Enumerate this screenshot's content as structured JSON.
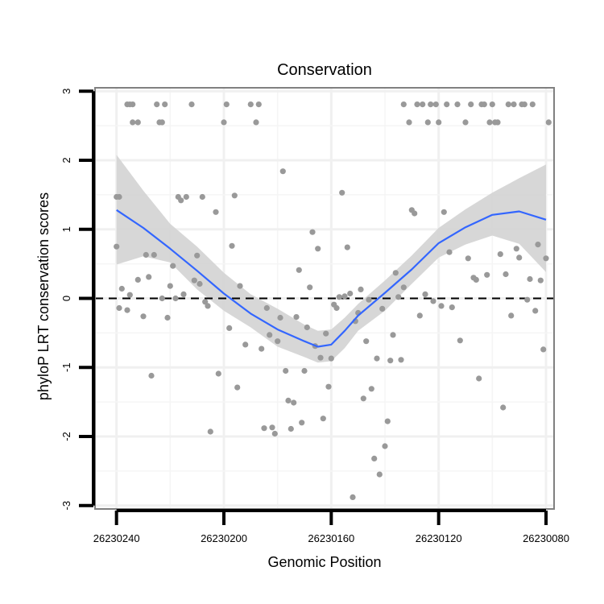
{
  "chart_data": {
    "type": "scatter",
    "title": "Conservation",
    "xlabel": "Genomic Position",
    "ylabel": "phyloP LRT conservation scores",
    "x_reversed": true,
    "xlim": [
      26230248,
      26230077
    ],
    "ylim": [
      -3.05,
      3.05
    ],
    "x_ticks": [
      26230240,
      26230200,
      26230160,
      26230120,
      26230080
    ],
    "x_tick_labels": [
      "26230240",
      "26230200",
      "26230160",
      "26230120",
      "26230080"
    ],
    "y_ticks": [
      -3,
      -2,
      -1,
      0,
      1,
      2,
      3
    ],
    "y_tick_labels": [
      "-3",
      "-2",
      "-1",
      "0",
      "1",
      "2",
      "3"
    ],
    "reference_line": {
      "y": 0,
      "style": "dashed"
    },
    "points_color": "#999999",
    "smooth_color": "#3366FF",
    "band_color": "#D3D3D3",
    "points": [
      [
        26230240,
        1.47
      ],
      [
        26230239,
        1.47
      ],
      [
        26230240,
        0.75
      ],
      [
        26230238,
        0.14
      ],
      [
        26230239,
        -0.14
      ],
      [
        26230236,
        -0.17
      ],
      [
        26230235,
        0.05
      ],
      [
        26230236,
        2.81
      ],
      [
        26230235,
        2.81
      ],
      [
        26230234,
        2.55
      ],
      [
        26230234,
        2.81
      ],
      [
        26230232,
        2.55
      ],
      [
        26230232,
        0.27
      ],
      [
        26230230,
        -0.26
      ],
      [
        26230228,
        0.31
      ],
      [
        26230229,
        0.63
      ],
      [
        26230227,
        -1.12
      ],
      [
        26230226,
        0.63
      ],
      [
        26230225,
        2.81
      ],
      [
        26230224,
        2.55
      ],
      [
        26230223,
        2.55
      ],
      [
        26230223,
        0.0
      ],
      [
        26230222,
        2.81
      ],
      [
        26230221,
        -0.28
      ],
      [
        26230220,
        0.18
      ],
      [
        26230219,
        0.47
      ],
      [
        26230218,
        0.0
      ],
      [
        26230217,
        1.47
      ],
      [
        26230216,
        1.42
      ],
      [
        26230215,
        0.06
      ],
      [
        26230214,
        1.47
      ],
      [
        26230212,
        2.81
      ],
      [
        26230211,
        0.26
      ],
      [
        26230210,
        0.62
      ],
      [
        26230209,
        0.21
      ],
      [
        26230208,
        1.47
      ],
      [
        26230206,
        -0.11
      ],
      [
        26230207,
        -0.05
      ],
      [
        26230205,
        -1.93
      ],
      [
        26230203,
        1.25
      ],
      [
        26230202,
        -1.09
      ],
      [
        26230200,
        2.55
      ],
      [
        26230199,
        2.81
      ],
      [
        26230198,
        -0.43
      ],
      [
        26230197,
        0.76
      ],
      [
        26230196,
        1.49
      ],
      [
        26230195,
        -1.29
      ],
      [
        26230194,
        0.18
      ],
      [
        26230192,
        -0.67
      ],
      [
        26230190,
        2.81
      ],
      [
        26230188,
        2.55
      ],
      [
        26230187,
        2.81
      ],
      [
        26230186,
        -0.73
      ],
      [
        26230185,
        -1.88
      ],
      [
        26230184,
        -0.14
      ],
      [
        26230183,
        -0.53
      ],
      [
        26230182,
        -1.87
      ],
      [
        26230181,
        -1.96
      ],
      [
        26230180,
        -0.62
      ],
      [
        26230179,
        -0.28
      ],
      [
        26230178,
        1.84
      ],
      [
        26230177,
        -1.05
      ],
      [
        26230176,
        -1.48
      ],
      [
        26230175,
        -1.89
      ],
      [
        26230174,
        -1.51
      ],
      [
        26230173,
        -0.27
      ],
      [
        26230172,
        0.41
      ],
      [
        26230171,
        -1.8
      ],
      [
        26230170,
        -1.05
      ],
      [
        26230169,
        -0.42
      ],
      [
        26230168,
        0.16
      ],
      [
        26230167,
        0.96
      ],
      [
        26230166,
        -0.69
      ],
      [
        26230165,
        0.72
      ],
      [
        26230164,
        -0.86
      ],
      [
        26230163,
        -1.74
      ],
      [
        26230162,
        -0.51
      ],
      [
        26230161,
        -1.28
      ],
      [
        26230160,
        -0.87
      ],
      [
        26230159,
        -0.09
      ],
      [
        26230158,
        -0.14
      ],
      [
        26230157,
        0.02
      ],
      [
        26230156,
        1.53
      ],
      [
        26230155,
        0.03
      ],
      [
        26230154,
        0.74
      ],
      [
        26230153,
        0.07
      ],
      [
        26230152,
        -2.88
      ],
      [
        26230151,
        -0.33
      ],
      [
        26230150,
        -0.21
      ],
      [
        26230149,
        0.13
      ],
      [
        26230148,
        -1.45
      ],
      [
        26230147,
        -0.62
      ],
      [
        26230146,
        -0.02
      ],
      [
        26230145,
        -1.31
      ],
      [
        26230144,
        -2.32
      ],
      [
        26230143,
        -0.87
      ],
      [
        26230142,
        -2.55
      ],
      [
        26230141,
        -0.15
      ],
      [
        26230140,
        -2.14
      ],
      [
        26230139,
        -1.78
      ],
      [
        26230138,
        -0.9
      ],
      [
        26230137,
        -0.53
      ],
      [
        26230136,
        0.37
      ],
      [
        26230135,
        0.02
      ],
      [
        26230134,
        -0.89
      ],
      [
        26230133,
        0.16
      ],
      [
        26230133,
        2.81
      ],
      [
        26230131,
        2.55
      ],
      [
        26230130,
        1.28
      ],
      [
        26230129,
        1.23
      ],
      [
        26230128,
        2.81
      ],
      [
        26230127,
        -0.25
      ],
      [
        26230126,
        2.81
      ],
      [
        26230125,
        0.06
      ],
      [
        26230124,
        2.55
      ],
      [
        26230123,
        2.81
      ],
      [
        26230122,
        -0.04
      ],
      [
        26230121,
        2.81
      ],
      [
        26230120,
        2.55
      ],
      [
        26230119,
        -0.11
      ],
      [
        26230118,
        1.25
      ],
      [
        26230117,
        2.81
      ],
      [
        26230116,
        0.67
      ],
      [
        26230115,
        -0.13
      ],
      [
        26230113,
        2.81
      ],
      [
        26230112,
        -0.61
      ],
      [
        26230110,
        2.55
      ],
      [
        26230109,
        0.58
      ],
      [
        26230108,
        2.81
      ],
      [
        26230107,
        0.3
      ],
      [
        26230106,
        0.27
      ],
      [
        26230105,
        -1.16
      ],
      [
        26230104,
        2.81
      ],
      [
        26230103,
        2.81
      ],
      [
        26230102,
        0.34
      ],
      [
        26230101,
        2.55
      ],
      [
        26230100,
        2.81
      ],
      [
        26230099,
        2.55
      ],
      [
        26230098,
        2.55
      ],
      [
        26230097,
        0.64
      ],
      [
        26230096,
        -1.58
      ],
      [
        26230095,
        0.35
      ],
      [
        26230094,
        2.81
      ],
      [
        26230093,
        -0.25
      ],
      [
        26230092,
        2.81
      ],
      [
        26230091,
        0.72
      ],
      [
        26230090,
        0.59
      ],
      [
        26230089,
        2.81
      ],
      [
        26230088,
        2.81
      ],
      [
        26230087,
        -0.02
      ],
      [
        26230086,
        0.28
      ],
      [
        26230085,
        2.81
      ],
      [
        26230084,
        -0.18
      ],
      [
        26230083,
        0.78
      ],
      [
        26230082,
        0.26
      ],
      [
        26230081,
        -0.74
      ],
      [
        26230080,
        0.58
      ],
      [
        26230079,
        2.55
      ]
    ],
    "smooth_fit": [
      [
        26230240,
        1.28
      ],
      [
        26230230,
        1.02
      ],
      [
        26230220,
        0.72
      ],
      [
        26230210,
        0.4
      ],
      [
        26230200,
        0.07
      ],
      [
        26230190,
        -0.22
      ],
      [
        26230180,
        -0.45
      ],
      [
        26230170,
        -0.62
      ],
      [
        26230165,
        -0.7
      ],
      [
        26230160,
        -0.67
      ],
      [
        26230155,
        -0.47
      ],
      [
        26230150,
        -0.25
      ],
      [
        26230140,
        0.08
      ],
      [
        26230130,
        0.42
      ],
      [
        26230120,
        0.8
      ],
      [
        26230110,
        1.03
      ],
      [
        26230100,
        1.21
      ],
      [
        26230090,
        1.26
      ],
      [
        26230080,
        1.14
      ]
    ],
    "confidence_band": {
      "x": [
        26230240,
        26230230,
        26230220,
        26230210,
        26230200,
        26230190,
        26230180,
        26230170,
        26230165,
        26230160,
        26230155,
        26230150,
        26230140,
        26230130,
        26230120,
        26230110,
        26230100,
        26230090,
        26230080
      ],
      "upper": [
        2.08,
        1.56,
        1.08,
        0.75,
        0.37,
        0.06,
        -0.15,
        -0.38,
        -0.47,
        -0.45,
        -0.28,
        -0.08,
        0.26,
        0.62,
        1.02,
        1.29,
        1.53,
        1.74,
        1.94
      ],
      "lower": [
        0.49,
        0.61,
        0.52,
        0.13,
        -0.18,
        -0.42,
        -0.7,
        -0.85,
        -0.93,
        -0.91,
        -0.72,
        -0.47,
        -0.18,
        0.21,
        0.59,
        0.78,
        0.91,
        0.79,
        0.38
      ]
    }
  }
}
